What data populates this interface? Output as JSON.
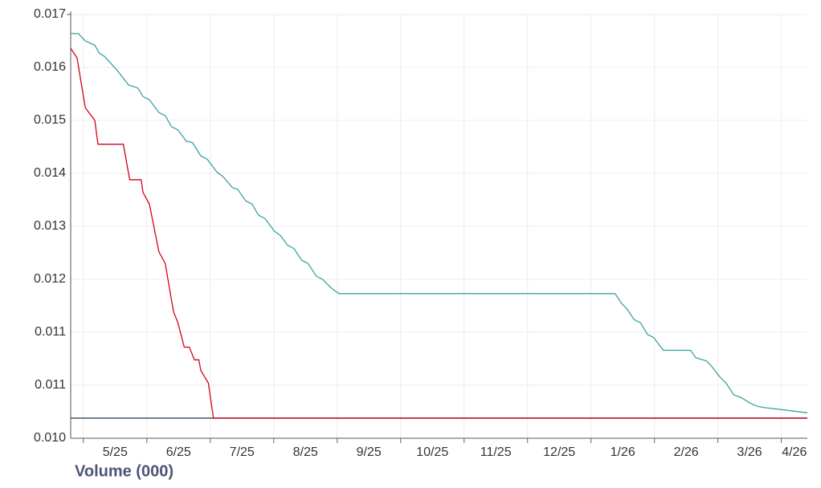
{
  "chart_data": {
    "type": "line",
    "x_axis_label": "Volume (000)",
    "categories": [
      "5/25",
      "6/25",
      "7/25",
      "8/25",
      "9/25",
      "10/25",
      "11/25",
      "12/25",
      "1/26",
      "2/26",
      "3/26",
      "4/26"
    ],
    "xlim": [
      -0.2,
      11.41
    ],
    "ylim": [
      0.01,
      0.017
    ],
    "yticks": [
      {
        "value": 0.01,
        "label": "0.010"
      },
      {
        "value": 0.0105,
        "label": "0.011"
      },
      {
        "value": 0.011,
        "label": "0.011"
      },
      {
        "value": 0.012,
        "label": "0.012"
      },
      {
        "value": 0.013,
        "label": "0.013"
      },
      {
        "value": 0.014,
        "label": "0.014"
      },
      {
        "value": 0.015,
        "label": "0.015"
      },
      {
        "value": 0.016,
        "label": "0.016"
      },
      {
        "value": 0.017,
        "label": "0.017"
      }
    ],
    "grid": true,
    "series": [
      {
        "color": "#34495e",
        "x": [
          -0.2,
          11.41
        ],
        "values": [
          0.01019,
          0.01019
        ]
      },
      {
        "color": "#3aa39e",
        "x": [
          -0.2,
          -0.08,
          0.03,
          0.18,
          0.25,
          0.33,
          0.53,
          0.71,
          0.86,
          0.94,
          1.04,
          1.19,
          1.29,
          1.39,
          1.49,
          1.62,
          1.72,
          1.85,
          1.95,
          2.1,
          2.2,
          2.35,
          2.43,
          2.56,
          2.66,
          2.76,
          2.86,
          3.01,
          3.11,
          3.22,
          3.32,
          3.44,
          3.54,
          3.67,
          3.77,
          3.92,
          4.03,
          8.38,
          8.48,
          8.56,
          8.68,
          8.78,
          8.89,
          8.99,
          9.14,
          9.57,
          9.65,
          9.82,
          9.9,
          10.03,
          10.13,
          10.25,
          10.38,
          10.51,
          10.63,
          10.73,
          11.41
        ],
        "values": [
          0.01664,
          0.01664,
          0.0165,
          0.01642,
          0.01627,
          0.01621,
          0.01595,
          0.01567,
          0.01561,
          0.01545,
          0.01539,
          0.01515,
          0.01509,
          0.01488,
          0.01482,
          0.01461,
          0.01458,
          0.01433,
          0.01427,
          0.01403,
          0.01394,
          0.01373,
          0.0137,
          0.01348,
          0.01342,
          0.01321,
          0.01315,
          0.01291,
          0.01282,
          0.01264,
          0.01258,
          0.01236,
          0.0123,
          0.01206,
          0.012,
          0.01182,
          0.01173,
          0.01173,
          0.01155,
          0.01145,
          0.01124,
          0.01118,
          0.01098,
          0.01095,
          0.01083,
          0.01083,
          0.01076,
          0.01073,
          0.01068,
          0.01058,
          0.01052,
          0.01041,
          0.01038,
          0.01033,
          0.0103,
          0.01029,
          0.01024
        ]
      },
      {
        "color": "#d0021b",
        "x": [
          -0.2,
          -0.1,
          0.03,
          0.18,
          0.23,
          0.63,
          0.73,
          0.91,
          0.94,
          1.04,
          1.19,
          1.29,
          1.42,
          1.49,
          1.59,
          1.67,
          1.75,
          1.82,
          1.85,
          1.97,
          2.05,
          11.41
        ],
        "values": [
          0.01636,
          0.01618,
          0.01524,
          0.015,
          0.01455,
          0.01455,
          0.01388,
          0.01388,
          0.01364,
          0.01342,
          0.01252,
          0.0123,
          0.01139,
          0.01118,
          0.01086,
          0.01086,
          0.01074,
          0.01074,
          0.01064,
          0.01052,
          0.01019,
          0.01019
        ]
      }
    ]
  }
}
